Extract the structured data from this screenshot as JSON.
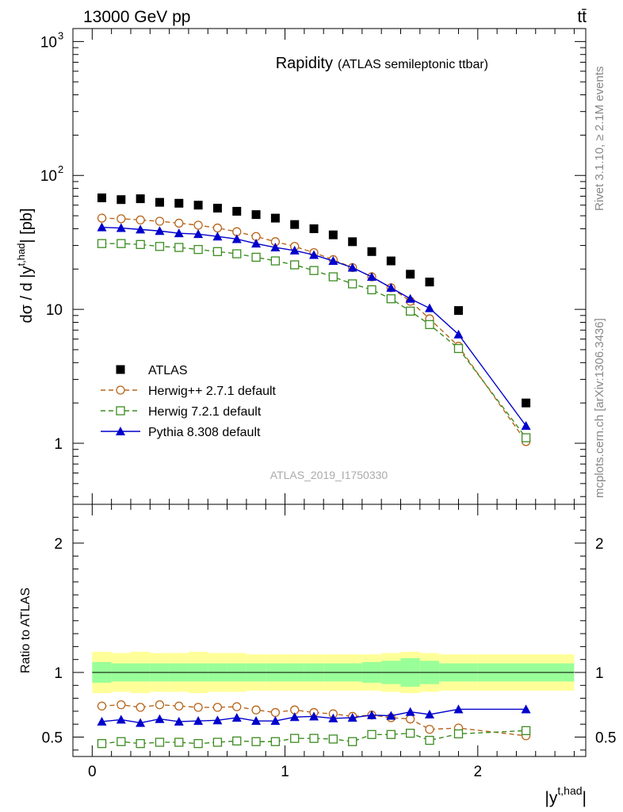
{
  "header": {
    "left": "13000 GeV pp",
    "right": "tt̄"
  },
  "side_labels": {
    "rivet": "Rivet 3.1.10, ≥ 2.1M events",
    "mcplots": "mcplots.cern.ch [arXiv:1306.3436]"
  },
  "chart_data": [
    {
      "panel": "main",
      "type": "scatter",
      "title": "Rapidity",
      "subtitle": "(ATLAS semileptonic ttbar)",
      "ylabel_prefix": "dσ / d |y",
      "ylabel_sup": "t,had",
      "ylabel_suffix": "| [pb]",
      "y_scale": "log",
      "ylim": [
        0.35,
        1250
      ],
      "xlim": [
        -0.1,
        2.56
      ],
      "x_ticks": [
        "0",
        "1",
        "2"
      ],
      "y_ticks": [
        {
          "value": 1,
          "label": "1"
        },
        {
          "value": 10,
          "label": "10"
        },
        {
          "value": 100,
          "label": "10",
          "exp": "2"
        },
        {
          "value": 1000,
          "label": "10",
          "exp": "3"
        }
      ],
      "watermark": "ATLAS_2019_I1750330",
      "legend_position": "lower-left",
      "x": [
        0.05,
        0.15,
        0.25,
        0.35,
        0.45,
        0.55,
        0.65,
        0.75,
        0.85,
        0.95,
        1.05,
        1.15,
        1.25,
        1.35,
        1.45,
        1.55,
        1.65,
        1.75,
        1.9,
        2.25
      ],
      "series": [
        {
          "name": "ATLAS",
          "color": "#000000",
          "marker": "square-filled",
          "values": [
            68,
            66,
            67,
            63,
            62,
            60,
            57,
            54,
            51,
            48,
            43,
            40,
            36,
            32,
            27,
            23,
            18.3,
            16,
            9.8,
            2.0
          ]
        },
        {
          "name": "Herwig++ 2.7.1 default",
          "color": "#b8651b",
          "marker": "circle-open",
          "line": "dashed",
          "values": [
            48,
            47.5,
            46.5,
            45.5,
            44,
            42.5,
            40.5,
            38,
            35,
            32,
            29.5,
            26.5,
            23.5,
            20.5,
            17.5,
            14.5,
            11.5,
            8.5,
            5.3,
            1.03
          ]
        },
        {
          "name": "Herwig 7.2.1 default",
          "color": "#3b8c1f",
          "marker": "square-open",
          "line": "dashed",
          "values": [
            31,
            31,
            30.5,
            29.5,
            29,
            28,
            27,
            26,
            24.5,
            23,
            21.5,
            19.5,
            17.5,
            15.5,
            14,
            12,
            9.7,
            7.7,
            5.1,
            1.1
          ]
        },
        {
          "name": "Pythia 8.308 default",
          "color": "#0000cc",
          "marker": "triangle-filled",
          "line": "solid",
          "values": [
            41,
            40.5,
            39.5,
            38.5,
            37,
            36.5,
            35,
            33.5,
            31,
            29,
            27.5,
            25.5,
            23,
            20.5,
            17.5,
            14.5,
            12,
            10.2,
            6.5,
            1.35
          ]
        }
      ]
    },
    {
      "panel": "ratio",
      "type": "line",
      "ylabel": "Ratio to ATLAS",
      "xlabel_prefix": "|y",
      "xlabel_sup": "t,had",
      "xlabel_suffix": "|",
      "ylim": [
        0.35,
        2.3
      ],
      "xlim": [
        -0.1,
        2.56
      ],
      "x_ticks": [
        "0",
        "1",
        "2"
      ],
      "y_ticks": [
        {
          "value": 0.5,
          "label": "0.5"
        },
        {
          "value": 1,
          "label": "1"
        },
        {
          "value": 2,
          "label": "2"
        }
      ],
      "band_edges": [
        0,
        0.1,
        0.2,
        0.3,
        0.4,
        0.5,
        0.6,
        0.7,
        0.8,
        0.9,
        1.0,
        1.1,
        1.2,
        1.3,
        1.4,
        1.5,
        1.6,
        1.7,
        1.8,
        2.0,
        2.5
      ],
      "band_outer": [
        0.16,
        0.15,
        0.16,
        0.15,
        0.15,
        0.16,
        0.15,
        0.15,
        0.14,
        0.14,
        0.14,
        0.14,
        0.14,
        0.14,
        0.14,
        0.15,
        0.16,
        0.15,
        0.14,
        0.14
      ],
      "band_inner": [
        0.08,
        0.07,
        0.07,
        0.07,
        0.07,
        0.07,
        0.07,
        0.07,
        0.07,
        0.07,
        0.07,
        0.07,
        0.07,
        0.07,
        0.08,
        0.09,
        0.11,
        0.09,
        0.07,
        0.07
      ],
      "band_outer_color": "#ffff99",
      "band_inner_color": "#99ff99",
      "x": [
        0.05,
        0.15,
        0.25,
        0.35,
        0.45,
        0.55,
        0.65,
        0.75,
        0.85,
        0.95,
        1.05,
        1.15,
        1.25,
        1.35,
        1.45,
        1.55,
        1.65,
        1.75,
        1.9,
        2.25
      ],
      "series": [
        {
          "name": "Herwig++ 2.7.1 default",
          "color": "#b8651b",
          "marker": "circle-open",
          "line": "dashed",
          "values": [
            0.74,
            0.75,
            0.73,
            0.75,
            0.74,
            0.73,
            0.73,
            0.735,
            0.71,
            0.69,
            0.71,
            0.69,
            0.68,
            0.66,
            0.67,
            0.65,
            0.64,
            0.56,
            0.57,
            0.51
          ]
        },
        {
          "name": "Herwig 7.2.1 default",
          "color": "#3b8c1f",
          "marker": "square-open",
          "line": "dashed",
          "values": [
            0.45,
            0.465,
            0.45,
            0.46,
            0.46,
            0.45,
            0.46,
            0.47,
            0.465,
            0.465,
            0.49,
            0.49,
            0.485,
            0.465,
            0.52,
            0.52,
            0.53,
            0.475,
            0.525,
            0.55
          ]
        },
        {
          "name": "Pythia 8.308 default",
          "color": "#0000cc",
          "marker": "triangle-filled",
          "line": "solid",
          "values": [
            0.62,
            0.635,
            0.61,
            0.64,
            0.62,
            0.625,
            0.63,
            0.65,
            0.625,
            0.625,
            0.655,
            0.66,
            0.645,
            0.65,
            0.67,
            0.665,
            0.695,
            0.675,
            0.715,
            0.715
          ]
        }
      ]
    }
  ]
}
